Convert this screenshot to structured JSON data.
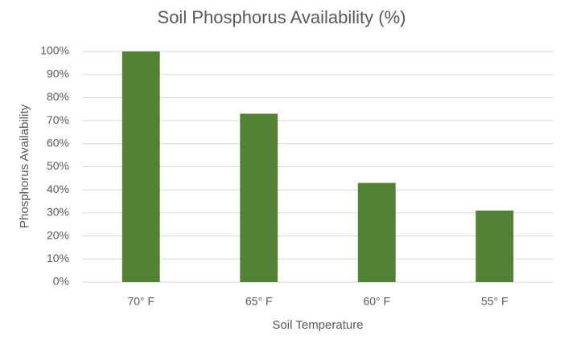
{
  "chart_data": {
    "type": "bar",
    "title": "Soil Phosphorus Availability (%)",
    "x_label": "Soil Temperature",
    "y_label": "Phosphorus Availability",
    "categories": [
      "70° F",
      "65° F",
      "60° F",
      "55° F"
    ],
    "values": [
      100,
      73,
      43,
      31
    ],
    "color": "#548235",
    "ylim": [
      0,
      100
    ],
    "yticks": [
      {
        "value": 0,
        "label": "0%"
      },
      {
        "value": 10,
        "label": "10%"
      },
      {
        "value": 20,
        "label": "20%"
      },
      {
        "value": 30,
        "label": "30%"
      },
      {
        "value": 40,
        "label": "40%"
      },
      {
        "value": 50,
        "label": "50%"
      },
      {
        "value": 60,
        "label": "60%"
      },
      {
        "value": 70,
        "label": "70%"
      },
      {
        "value": 80,
        "label": "80%"
      },
      {
        "value": 90,
        "label": "90%"
      },
      {
        "value": 100,
        "label": "100%"
      }
    ],
    "grid": true
  }
}
